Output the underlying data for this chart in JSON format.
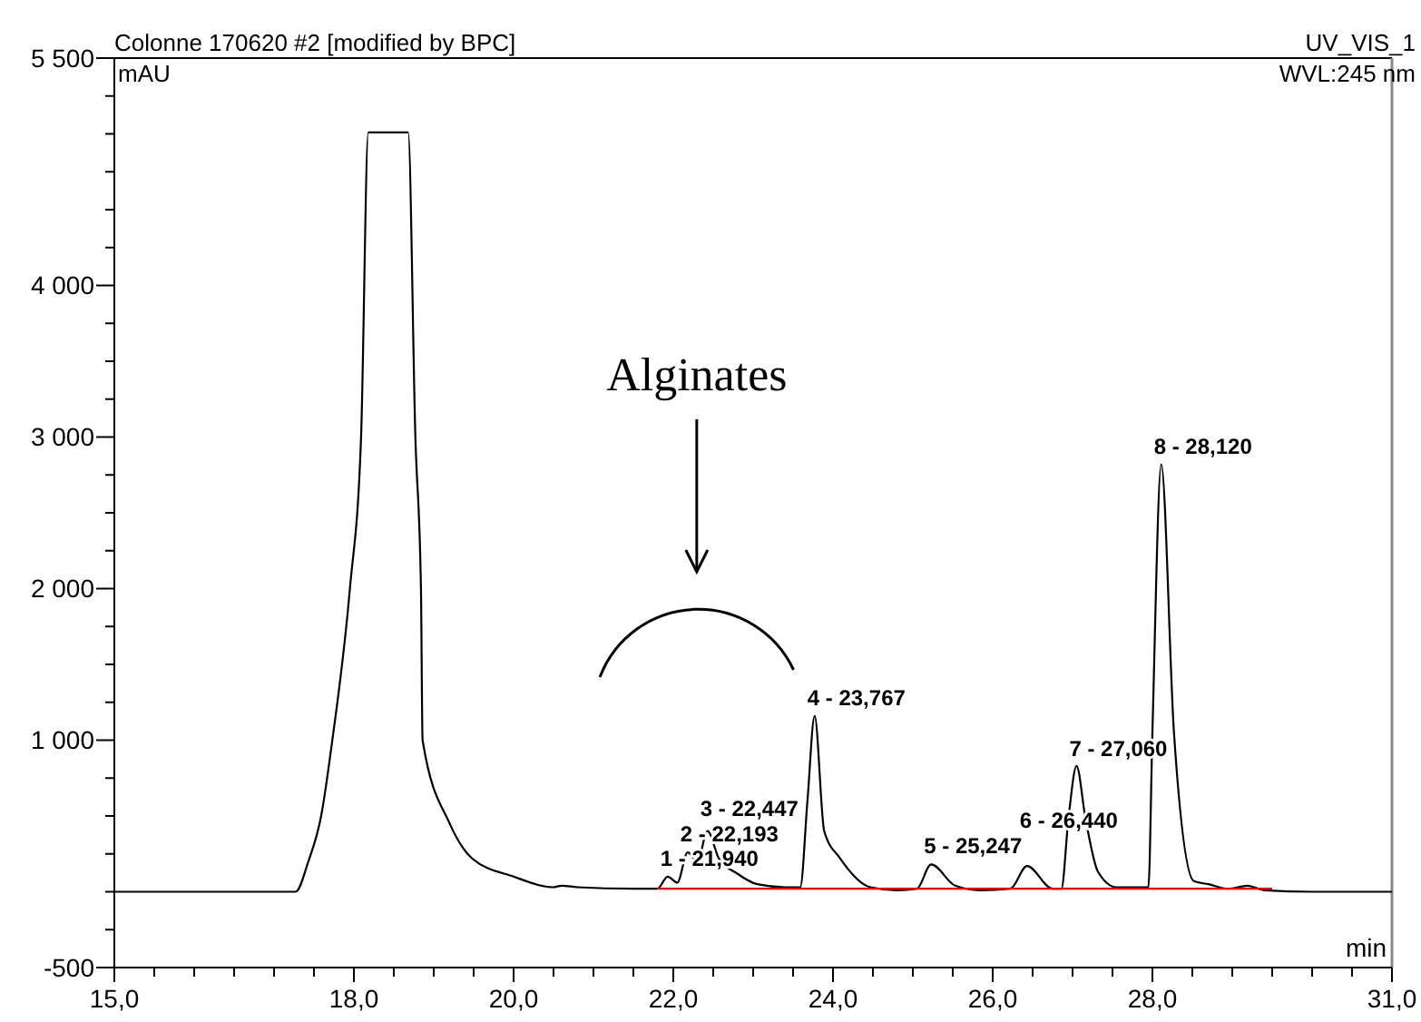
{
  "chart_data": {
    "type": "line",
    "title": "Colonne 170620 #2 [modified by BPC]",
    "subtitle": "UV_VIS_1",
    "xlabel": "min",
    "ylabel": "mAU",
    "xlim": [
      15,
      31
    ],
    "ylim": [
      -500,
      5500
    ],
    "xticks": [
      {
        "value": 15,
        "label": "15,0"
      },
      {
        "value": 15.5,
        "label": null
      },
      {
        "value": 16,
        "label": null
      },
      {
        "value": 16.5,
        "label": null
      },
      {
        "value": 17,
        "label": null
      },
      {
        "value": 17.5,
        "label": null
      },
      {
        "value": 18,
        "label": "18,0"
      },
      {
        "value": 18.5,
        "label": null
      },
      {
        "value": 19,
        "label": null
      },
      {
        "value": 19.5,
        "label": null
      },
      {
        "value": 20,
        "label": "20,0"
      },
      {
        "value": 20.5,
        "label": null
      },
      {
        "value": 21,
        "label": null
      },
      {
        "value": 21.5,
        "label": null
      },
      {
        "value": 22,
        "label": "22,0"
      },
      {
        "value": 22.5,
        "label": null
      },
      {
        "value": 23,
        "label": null
      },
      {
        "value": 23.5,
        "label": null
      },
      {
        "value": 24,
        "label": "24,0"
      },
      {
        "value": 24.5,
        "label": null
      },
      {
        "value": 25,
        "label": null
      },
      {
        "value": 25.5,
        "label": null
      },
      {
        "value": 26,
        "label": "26,0"
      },
      {
        "value": 26.5,
        "label": null
      },
      {
        "value": 27,
        "label": null
      },
      {
        "value": 27.5,
        "label": null
      },
      {
        "value": 28,
        "label": "28,0"
      },
      {
        "value": 28.5,
        "label": null
      },
      {
        "value": 29,
        "label": null
      },
      {
        "value": 29.5,
        "label": null
      },
      {
        "value": 30,
        "label": null
      },
      {
        "value": 30.5,
        "label": null
      },
      {
        "value": 31,
        "label": "31,0"
      }
    ],
    "yticks": [
      {
        "value": -500,
        "label": "-500"
      },
      {
        "value": -250,
        "label": null
      },
      {
        "value": 0,
        "label": null
      },
      {
        "value": 250,
        "label": null
      },
      {
        "value": 500,
        "label": null
      },
      {
        "value": 750,
        "label": null
      },
      {
        "value": 1000,
        "label": "1 000"
      },
      {
        "value": 1250,
        "label": null
      },
      {
        "value": 1500,
        "label": null
      },
      {
        "value": 1750,
        "label": null
      },
      {
        "value": 2000,
        "label": "2 000"
      },
      {
        "value": 2250,
        "label": null
      },
      {
        "value": 2500,
        "label": null
      },
      {
        "value": 2750,
        "label": null
      },
      {
        "value": 3000,
        "label": "3 000"
      },
      {
        "value": 3250,
        "label": null
      },
      {
        "value": 3500,
        "label": null
      },
      {
        "value": 3750,
        "label": null
      },
      {
        "value": 4000,
        "label": "4 000"
      },
      {
        "value": 4250,
        "label": null
      },
      {
        "value": 4500,
        "label": null
      },
      {
        "value": 4750,
        "label": null
      },
      {
        "value": 5000,
        "label": null
      },
      {
        "value": 5250,
        "label": null
      },
      {
        "value": 5500,
        "label": "5 500"
      }
    ],
    "grid": false,
    "marker": "none",
    "line_style": "solid",
    "series": [
      {
        "color": "#000000",
        "x": [
          15,
          16,
          17,
          17.27,
          17.43,
          17.59,
          17.73,
          17.95,
          18.09,
          18.18,
          18.68,
          18.77,
          18.84,
          18.86,
          19.2,
          19.48,
          20,
          20.5,
          20.6,
          20.8,
          21.5,
          21.8,
          21.93,
          22.05,
          22.18,
          22.3,
          22.43,
          22.57,
          22.8,
          23.05,
          23.4,
          23.59,
          23.68,
          23.77,
          23.89,
          24.09,
          24.47,
          24.8,
          25.05,
          25.23,
          25.53,
          25.84,
          26.22,
          26.43,
          26.75,
          26.86,
          26.95,
          27.05,
          27.16,
          27.32,
          27.55,
          27.95,
          28,
          28.11,
          28.27,
          28.52,
          28.7,
          28.95,
          29.19,
          29.4,
          30,
          31
        ],
        "values": [
          0,
          0,
          0,
          0,
          200,
          500,
          1000,
          2000,
          3000,
          5010,
          5010,
          3000,
          2000,
          1000,
          450,
          220,
          100,
          30,
          40,
          30,
          20,
          20,
          100,
          60,
          260,
          200,
          400,
          220,
          120,
          50,
          30,
          30,
          600,
          1160,
          400,
          220,
          30,
          10,
          20,
          180,
          40,
          10,
          20,
          170,
          20,
          20,
          490,
          830,
          490,
          130,
          30,
          30,
          1050,
          2820,
          1050,
          70,
          50,
          20,
          40,
          10,
          0,
          0
        ]
      },
      {
        "color": "#ff0000",
        "x": [
          21.8,
          29.5
        ],
        "values": [
          20,
          20
        ]
      }
    ],
    "annotations": [
      "WVL:245 nm",
      "Alginates",
      {
        "text": "1 - 21,940",
        "x": 21.93,
        "y": 100
      },
      {
        "text": "2 - 22,193",
        "x": 22.18,
        "y": 260
      },
      {
        "text": "3 - 22,447",
        "x": 22.43,
        "y": 400
      },
      {
        "text": "4 - 23,767",
        "x": 23.77,
        "y": 1160
      },
      {
        "text": "5 - 25,247",
        "x": 25.23,
        "y": 180
      },
      {
        "text": "6 - 26,440",
        "x": 26.43,
        "y": 165
      },
      {
        "text": "7 - 27,060",
        "x": 27.05,
        "y": 825
      },
      {
        "text": "8 - 28,120",
        "x": 28.11,
        "y": 2820
      }
    ]
  }
}
